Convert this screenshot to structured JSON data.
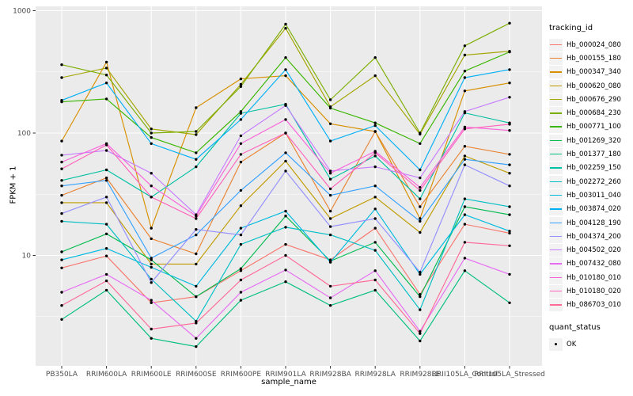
{
  "figure": {
    "background": "#FFFFFF",
    "panel_background": "#EBEBEB",
    "grid_color": "#FFFFFF",
    "tick_mark_color": "#333333",
    "tick_label_color": "#4D4D4D",
    "point_color": "#000000"
  },
  "chart_data": {
    "type": "line",
    "title": "",
    "xlabel": "sample_name",
    "ylabel": "FPKM + 1",
    "y_scale": "log10",
    "ylim": [
      1,
      1000
    ],
    "y_ticks": [
      {
        "label": "1000",
        "value": 1000
      },
      {
        "label": "100",
        "value": 100
      },
      {
        "label": "10",
        "value": 10
      }
    ],
    "grid": "on",
    "legend_position": "right",
    "legend_title": "tracking_id",
    "quant_legend_title": "quant_status",
    "quant_legend_ok_label": "OK",
    "categories": [
      "PB350LA",
      "RRIM600LA",
      "RRIM600LE",
      "RRIM600SE",
      "RRIM600PE",
      "RRIM901LA",
      "RRIM928BA",
      "RRIM928LA",
      "RRIM928LE",
      "RRII105LA_Control",
      "RRII105LA_Stressed"
    ],
    "series": [
      {
        "name": "Hb_000024_080",
        "color": "#F8766D",
        "values": [
          7.9,
          9.9,
          4.1,
          4.6,
          7.5,
          12.3,
          9.2,
          16.7,
          4.8,
          18.0,
          15.2
        ]
      },
      {
        "name": "Hb_000155_180",
        "color": "#EA8331",
        "values": [
          31,
          43,
          13.7,
          10.3,
          58,
          100,
          23,
          103,
          25,
          78,
          67
        ]
      },
      {
        "name": "Hb_000347_340",
        "color": "#D89000",
        "values": [
          86,
          380,
          16.7,
          161,
          277,
          294,
          119,
          103,
          20,
          221,
          257
        ]
      },
      {
        "name": "Hb_000620_080",
        "color": "#C09B00",
        "values": [
          27,
          27,
          8.5,
          8.5,
          25.5,
          59,
          20,
          30,
          15.4,
          65,
          47
        ]
      },
      {
        "name": "Hb_000676_290",
        "color": "#A3A500",
        "values": [
          284,
          340,
          108,
          97,
          250,
          718,
          164,
          294,
          98,
          434,
          466
        ]
      },
      {
        "name": "Hb_000684_230",
        "color": "#7CAE00",
        "values": [
          362,
          298,
          100,
          103,
          240,
          776,
          187,
          414,
          100,
          517,
          790
        ]
      },
      {
        "name": "Hb_000771_100",
        "color": "#39B600",
        "values": [
          180,
          190,
          92,
          69,
          150,
          414,
          160,
          121,
          82,
          321,
          460
        ]
      },
      {
        "name": "Hb_001269_320",
        "color": "#00BB4E",
        "values": [
          10.7,
          15,
          9.2,
          4.6,
          7.8,
          21,
          9.0,
          12.8,
          4.6,
          25,
          21.5
        ]
      },
      {
        "name": "Hb_001377_180",
        "color": "#00BF7D",
        "values": [
          3.0,
          5.2,
          2.1,
          1.8,
          4.3,
          6.1,
          3.9,
          5.2,
          2.0,
          7.5,
          4.1
        ]
      },
      {
        "name": "Hb_002259_150",
        "color": "#00C1A3",
        "values": [
          41,
          50,
          30,
          53,
          145,
          172,
          42,
          65,
          29,
          146,
          121
        ]
      },
      {
        "name": "Hb_002272_260",
        "color": "#00BFC4",
        "values": [
          19,
          18,
          6.4,
          2.9,
          12.3,
          17,
          14.7,
          11,
          3.6,
          29,
          25
        ]
      },
      {
        "name": "Hb_003011_040",
        "color": "#00BAE0",
        "values": [
          9.2,
          11.4,
          8.0,
          5.6,
          16.7,
          23,
          8.8,
          24,
          7.0,
          21.5,
          15.8
        ]
      },
      {
        "name": "Hb_003874_020",
        "color": "#00B0F6",
        "values": [
          185,
          257,
          82,
          61,
          129,
          330,
          86,
          115,
          50,
          284,
          330
        ]
      },
      {
        "name": "Hb_004128_190",
        "color": "#35A2FF",
        "values": [
          37,
          41,
          9.5,
          14.7,
          34,
          69,
          31,
          37,
          19,
          61,
          55
        ]
      },
      {
        "name": "Hb_004374_200",
        "color": "#9590FF",
        "values": [
          22,
          30,
          6.0,
          16.3,
          14.7,
          49,
          17.2,
          20,
          7.3,
          55,
          37
        ]
      },
      {
        "name": "Hb_004502_020",
        "color": "#C77CFF",
        "values": [
          66,
          72,
          47,
          21.5,
          95,
          168,
          49,
          53,
          43,
          150,
          196
        ]
      },
      {
        "name": "Hb_007432_080",
        "color": "#E76BF3",
        "values": [
          5.0,
          7.0,
          4.3,
          2.1,
          5.0,
          7.6,
          4.5,
          7.5,
          2.4,
          9.5,
          7.0
        ]
      },
      {
        "name": "Hb_010180_010",
        "color": "#FA62DB",
        "values": [
          58,
          82,
          37,
          21,
          82,
          129,
          47,
          71,
          36,
          112,
          105
        ]
      },
      {
        "name": "Hb_010180_020",
        "color": "#FF62BC",
        "values": [
          51,
          80,
          30,
          20,
          67,
          100,
          35,
          69,
          34,
          108,
          118
        ]
      },
      {
        "name": "Hb_086703_010",
        "color": "#FF6A98",
        "values": [
          3.9,
          6.2,
          2.5,
          2.8,
          6.3,
          10,
          5.6,
          6.3,
          2.3,
          12.8,
          12
        ]
      }
    ]
  }
}
